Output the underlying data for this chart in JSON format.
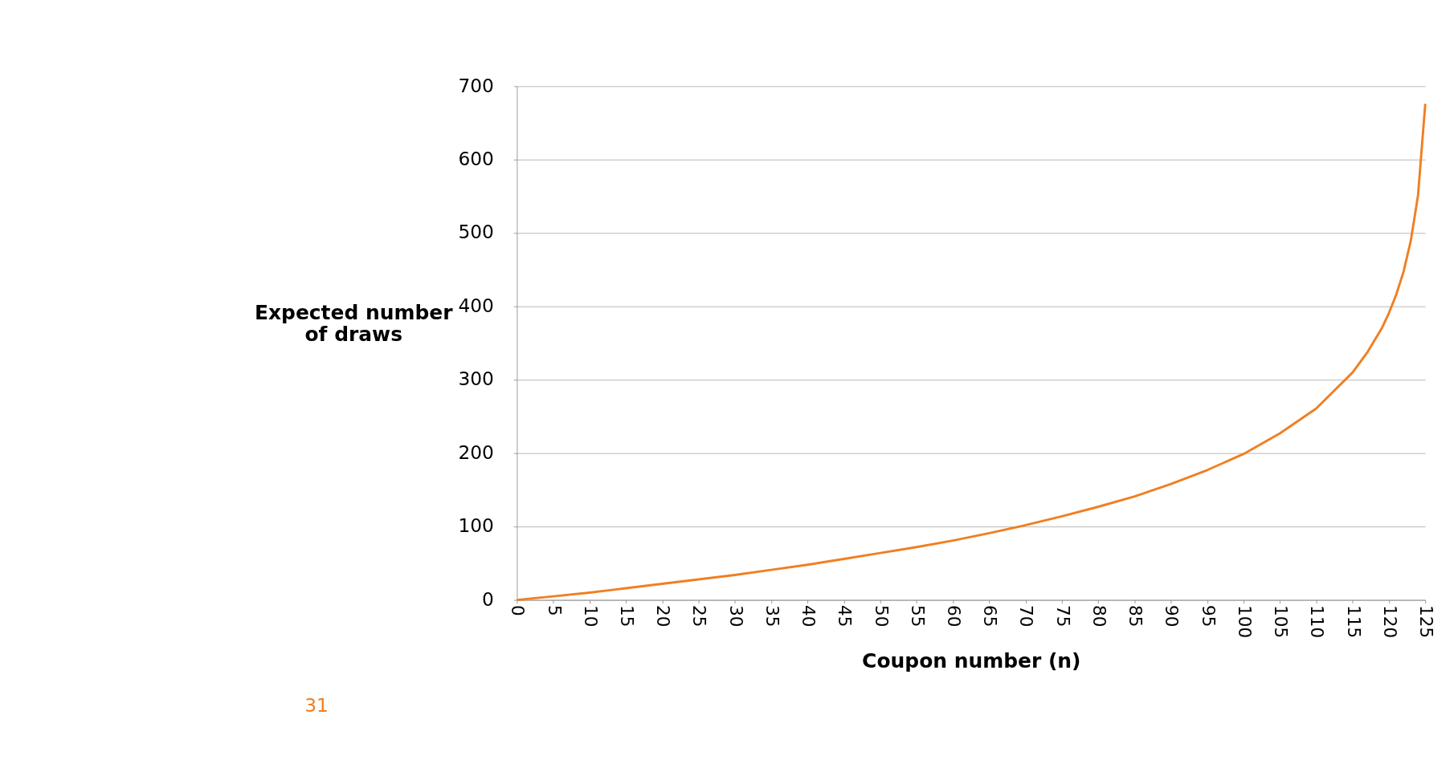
{
  "chart_data": {
    "type": "line",
    "xlabel": "Coupon number (n)",
    "ylabel": "Expected number of draws",
    "x": [
      0,
      5,
      10,
      15,
      20,
      25,
      30,
      35,
      40,
      45,
      50,
      55,
      60,
      65,
      70,
      75,
      80,
      85,
      90,
      95,
      100,
      105,
      110,
      115,
      117,
      119,
      120,
      121,
      122,
      123,
      124,
      125
    ],
    "series": [
      {
        "color": "#f07f22",
        "values": [
          0,
          5,
          10,
          16,
          22,
          28,
          34,
          41,
          48,
          56,
          64,
          72,
          81,
          91,
          102,
          114,
          127,
          141,
          158,
          177,
          199,
          227,
          261,
          310,
          337,
          370,
          391,
          416,
          447,
          489,
          551,
          676
        ]
      }
    ],
    "xlim": [
      0,
      125
    ],
    "xticks": [
      0,
      5,
      10,
      15,
      20,
      25,
      30,
      35,
      40,
      45,
      50,
      55,
      60,
      65,
      70,
      75,
      80,
      85,
      90,
      95,
      100,
      105,
      110,
      115,
      120,
      125
    ],
    "ylim": [
      0,
      700
    ],
    "yticks": [
      0,
      100,
      200,
      300,
      400,
      500,
      600,
      700
    ],
    "grid": "y",
    "marker": "none",
    "line_style": "solid",
    "annotations": [
      "31"
    ]
  }
}
